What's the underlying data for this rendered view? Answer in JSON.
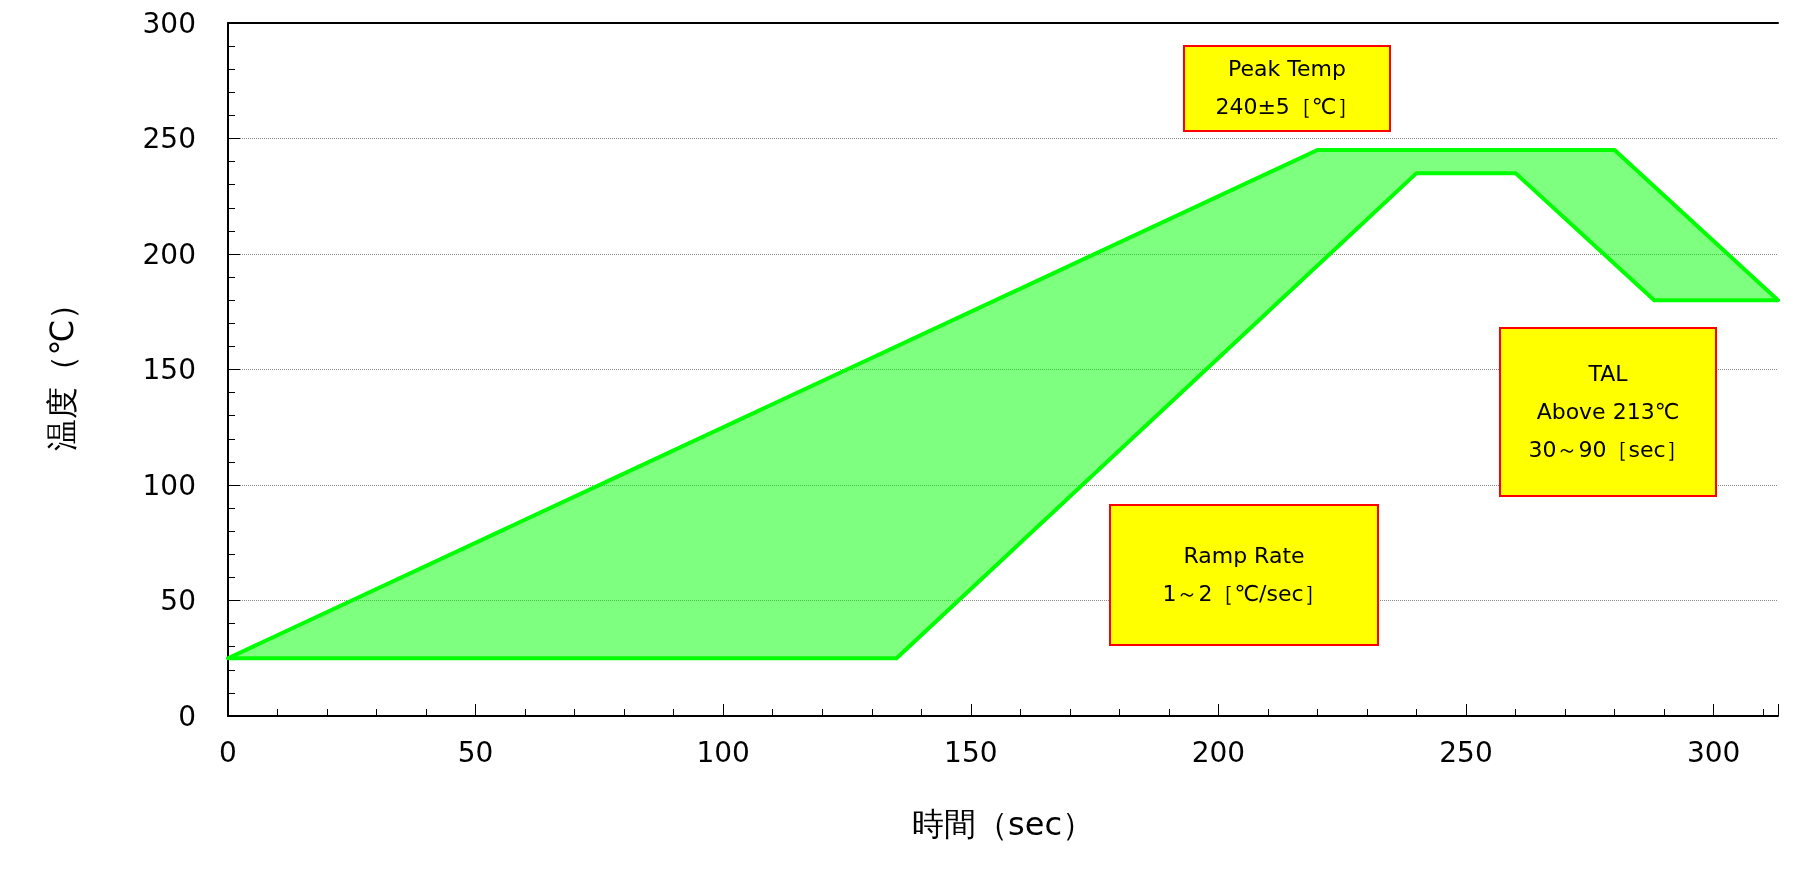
{
  "chart_data": {
    "type": "area",
    "xlabel": "時間（sec）",
    "ylabel": "温度（℃）",
    "xlim": [
      0,
      313
    ],
    "xticks": [
      0,
      50,
      100,
      150,
      200,
      250,
      300
    ],
    "ylim": [
      0,
      300
    ],
    "yticks": [
      0,
      50,
      100,
      150,
      200,
      250,
      300
    ],
    "grid": "y",
    "series": [
      {
        "color": "#00ff00",
        "x": [
          0,
          220,
          280,
          313,
          288,
          260,
          240,
          135,
          0
        ],
        "values": [
          25,
          245,
          245,
          180,
          180,
          235,
          235,
          25,
          25
        ]
      }
    ],
    "annotations": [
      "Peak Temp\n240±5［℃］",
      "TAL\nAbove 213℃\n30～90［sec］",
      "Ramp Rate\n1～2［℃/sec］"
    ]
  }
}
